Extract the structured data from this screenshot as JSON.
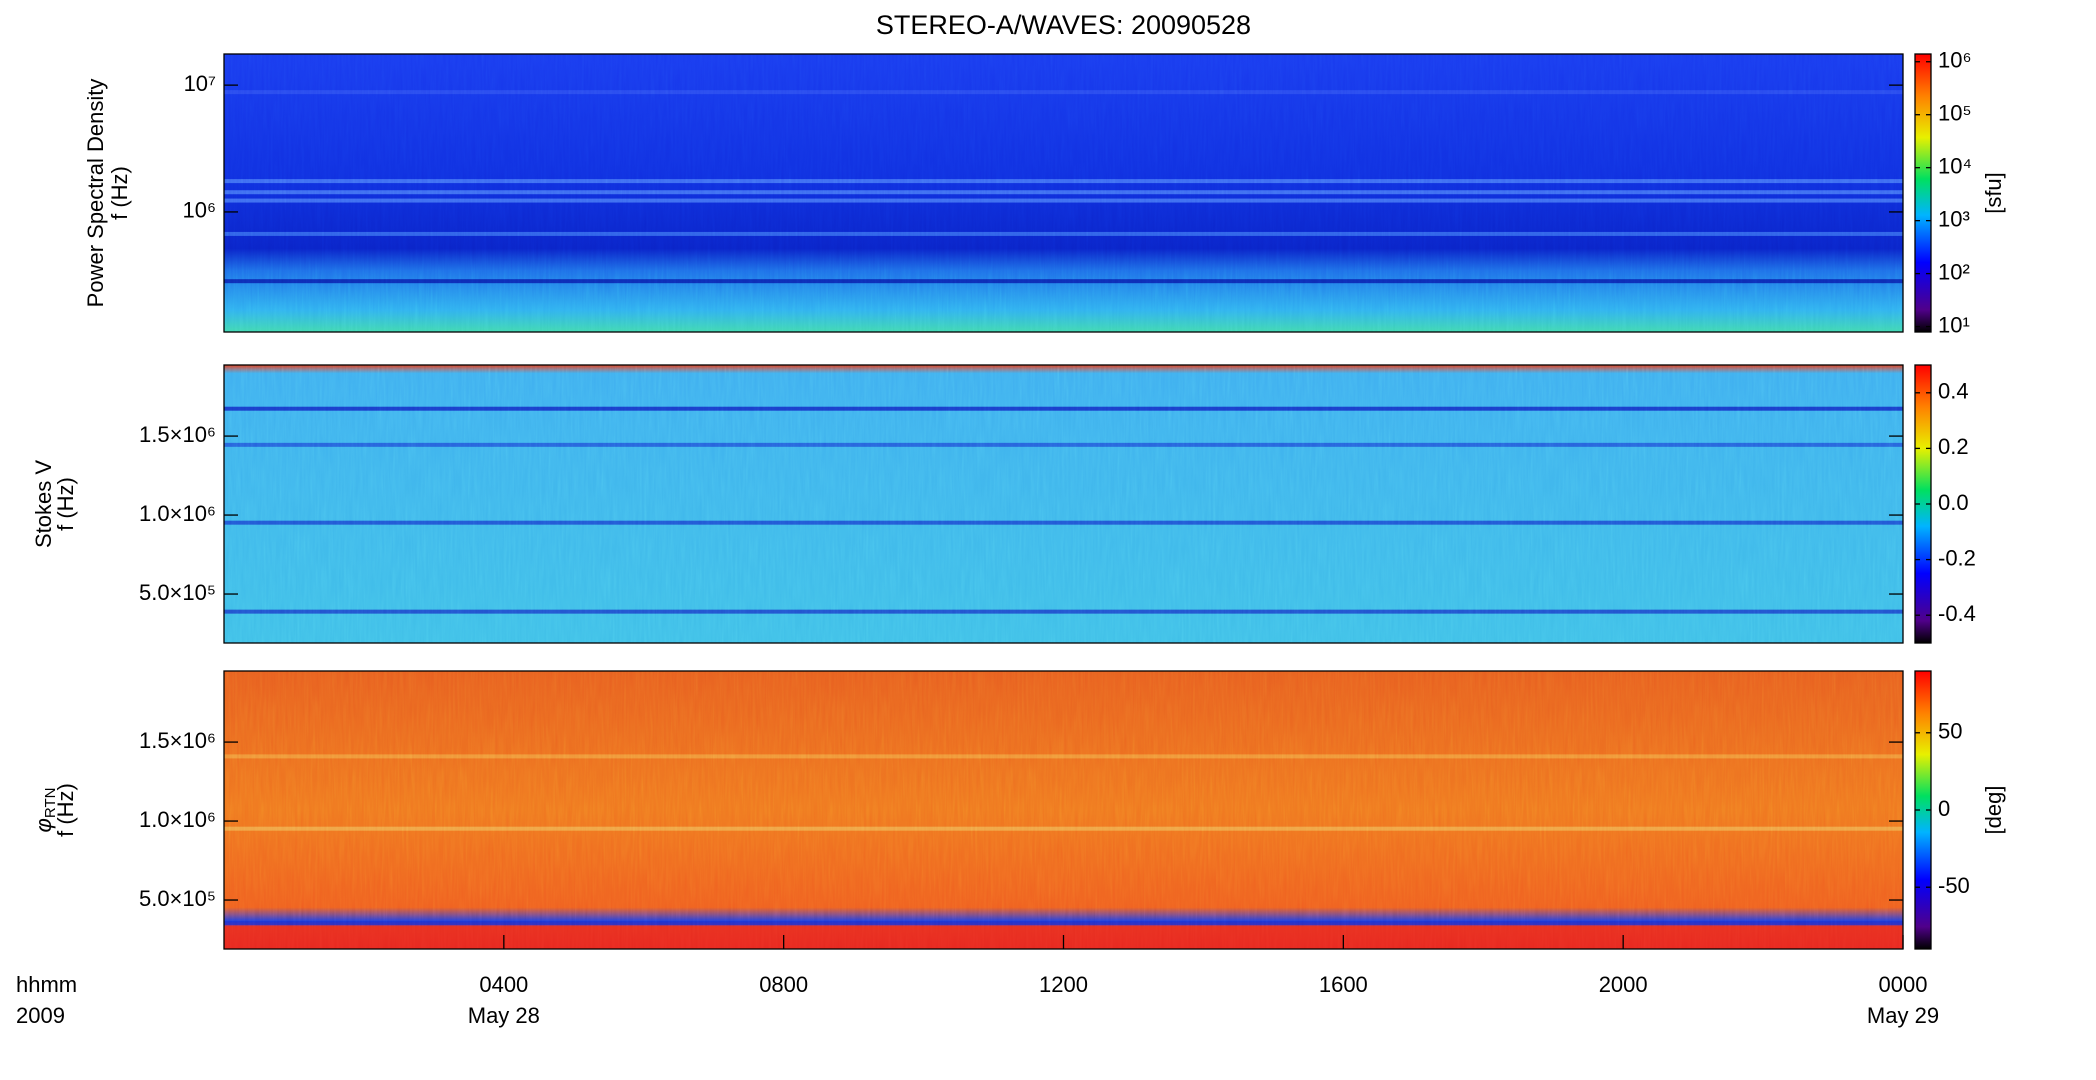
{
  "chart_data": [
    {
      "type": "spectrogram",
      "title": "STEREO-A/WAVES: 20090528",
      "ylabel": [
        "Power Spectral Density",
        "f (Hz)"
      ],
      "ylog": true,
      "ylim": [
        113000,
        17600000
      ],
      "yticks": [
        {
          "value": 1000000,
          "label": "10⁶"
        },
        {
          "value": 10000000,
          "label": "10⁷"
        }
      ],
      "colorbar": {
        "log": true,
        "lim": [
          7.9,
          1400000
        ],
        "label": "[sfu]",
        "ticks": [
          {
            "value": 10,
            "label": "10¹"
          },
          {
            "value": 100,
            "label": "10²"
          },
          {
            "value": 1000,
            "label": "10³"
          },
          {
            "value": 10000,
            "label": "10⁴"
          },
          {
            "value": 100000,
            "label": "10⁵"
          },
          {
            "value": 1000000,
            "label": "10⁶"
          }
        ]
      }
    },
    {
      "type": "spectrogram",
      "ylabel": [
        "Stokes V",
        "f (Hz)"
      ],
      "ylog": false,
      "ylim": [
        190000,
        1950000
      ],
      "yticks": [
        {
          "value": 500000,
          "label": "5.0×10⁵"
        },
        {
          "value": 1000000,
          "label": "1.0×10⁶"
        },
        {
          "value": 1500000,
          "label": "1.5×10⁶"
        }
      ],
      "colorbar": {
        "log": false,
        "lim": [
          -0.5,
          0.5
        ],
        "ticks": [
          {
            "value": 0.4,
            "label": "0.4"
          },
          {
            "value": 0.2,
            "label": "0.2"
          },
          {
            "value": 0,
            "label": "0.0"
          },
          {
            "value": -0.2,
            "label": "-0.2"
          },
          {
            "value": -0.4,
            "label": "-0.4"
          }
        ]
      }
    },
    {
      "type": "spectrogram",
      "ylabel_symbol": "φ",
      "ylabel_subscript": "RTN",
      "ylabel": [
        "f (Hz)"
      ],
      "ylog": false,
      "ylim": [
        190000,
        1950000
      ],
      "yticks": [
        {
          "value": 500000,
          "label": "5.0×10⁵"
        },
        {
          "value": 1000000,
          "label": "1.0×10⁶"
        },
        {
          "value": 1500000,
          "label": "1.5×10⁶"
        }
      ],
      "colorbar": {
        "log": false,
        "lim": [
          -90,
          90
        ],
        "label": "[deg]",
        "ticks": [
          50,
          0,
          -50
        ]
      },
      "xlim": [
        0,
        24
      ],
      "xaxis_label": [
        "hhmm",
        "2009"
      ],
      "xticks": [
        {
          "value": 4,
          "label": "0400"
        },
        {
          "value": 8,
          "label": "0800"
        },
        {
          "value": 12,
          "label": "1200"
        },
        {
          "value": 16,
          "label": "1600"
        },
        {
          "value": 20,
          "label": "2000"
        },
        {
          "value": 24,
          "label": "0000"
        }
      ],
      "xtick_sublabels": [
        {
          "value": 4,
          "label": "May 28"
        },
        {
          "value": 24,
          "label": "May 29"
        }
      ]
    }
  ]
}
